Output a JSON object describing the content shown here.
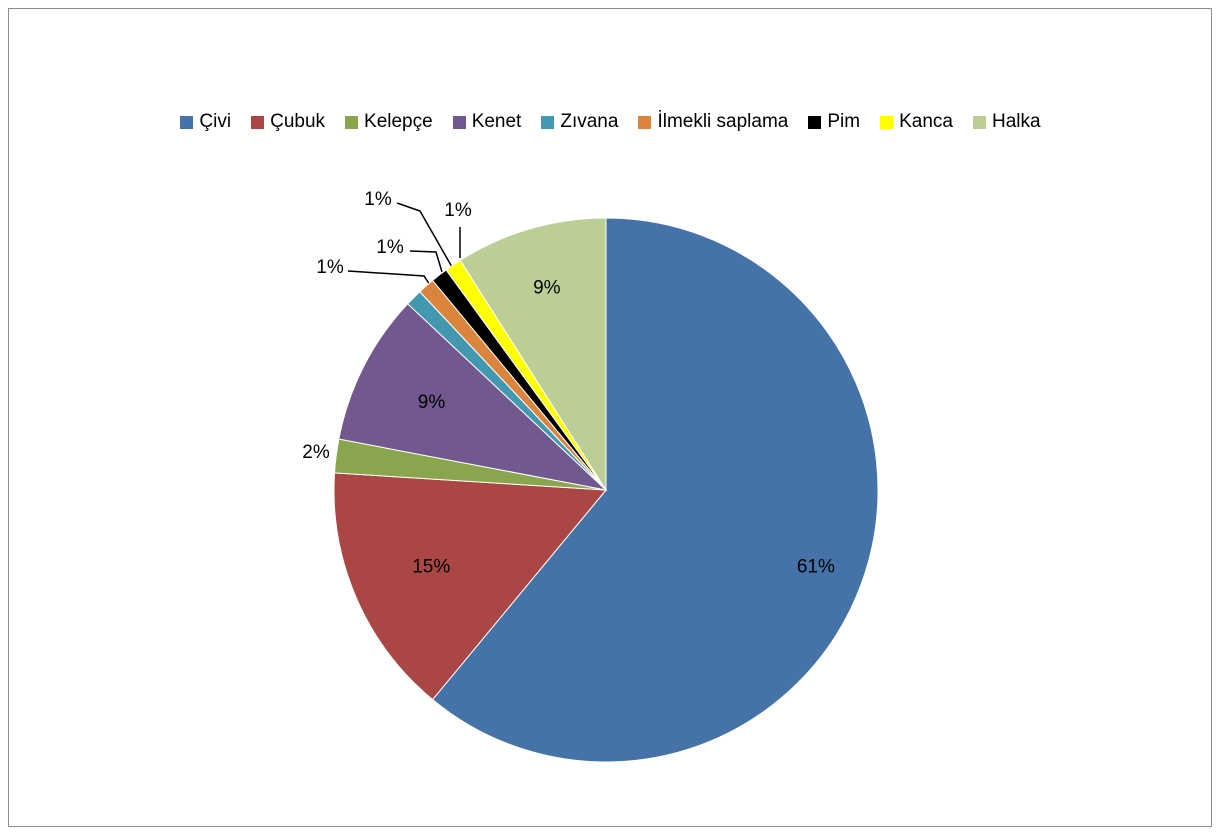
{
  "chart_data": {
    "type": "pie",
    "title": "",
    "legend_position": "top",
    "series": [
      {
        "name": "Çivi",
        "value": 61,
        "label": "61%",
        "color": "#4572A7"
      },
      {
        "name": "Çubuk",
        "value": 15,
        "label": "15%",
        "color": "#AA4643"
      },
      {
        "name": "Kelepçe",
        "value": 2,
        "label": "2%",
        "color": "#89A54E"
      },
      {
        "name": "Kenet",
        "value": 9,
        "label": "9%",
        "color": "#71588F"
      },
      {
        "name": "Zıvana",
        "value": 1,
        "label": "1%",
        "color": "#4198AF"
      },
      {
        "name": "İlmekli saplama",
        "value": 1,
        "label": "1%",
        "color": "#DB843D"
      },
      {
        "name": "Pim",
        "value": 1,
        "label": "1%",
        "color": "#000000"
      },
      {
        "name": "Kanca",
        "value": 1,
        "label": "1%",
        "color": "#FFFF00"
      },
      {
        "name": "Halka",
        "value": 9,
        "label": "9%",
        "color": "#BACE96"
      }
    ]
  }
}
